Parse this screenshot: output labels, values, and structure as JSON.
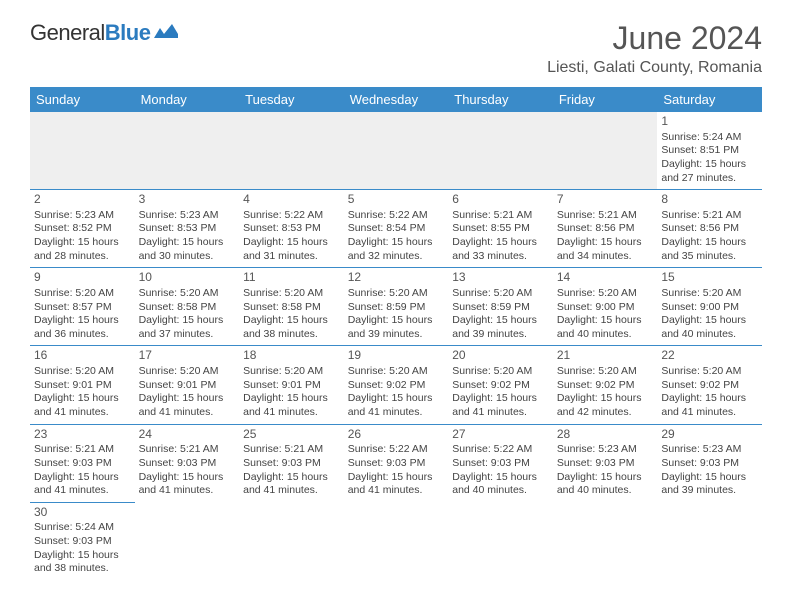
{
  "logo": {
    "text1": "General",
    "text2": "Blue"
  },
  "title": "June 2024",
  "location": "Liesti, Galati County, Romania",
  "colors": {
    "header_bg": "#3a8bc9",
    "header_text": "#ffffff",
    "border": "#3a8bc9",
    "logo_blue": "#2b7bbf",
    "text": "#444444",
    "empty_bg": "#efefef"
  },
  "weekdays": [
    "Sunday",
    "Monday",
    "Tuesday",
    "Wednesday",
    "Thursday",
    "Friday",
    "Saturday"
  ],
  "weeks": [
    [
      null,
      null,
      null,
      null,
      null,
      null,
      {
        "d": "1",
        "sr": "Sunrise: 5:24 AM",
        "ss": "Sunset: 8:51 PM",
        "dl1": "Daylight: 15 hours",
        "dl2": "and 27 minutes."
      }
    ],
    [
      {
        "d": "2",
        "sr": "Sunrise: 5:23 AM",
        "ss": "Sunset: 8:52 PM",
        "dl1": "Daylight: 15 hours",
        "dl2": "and 28 minutes."
      },
      {
        "d": "3",
        "sr": "Sunrise: 5:23 AM",
        "ss": "Sunset: 8:53 PM",
        "dl1": "Daylight: 15 hours",
        "dl2": "and 30 minutes."
      },
      {
        "d": "4",
        "sr": "Sunrise: 5:22 AM",
        "ss": "Sunset: 8:53 PM",
        "dl1": "Daylight: 15 hours",
        "dl2": "and 31 minutes."
      },
      {
        "d": "5",
        "sr": "Sunrise: 5:22 AM",
        "ss": "Sunset: 8:54 PM",
        "dl1": "Daylight: 15 hours",
        "dl2": "and 32 minutes."
      },
      {
        "d": "6",
        "sr": "Sunrise: 5:21 AM",
        "ss": "Sunset: 8:55 PM",
        "dl1": "Daylight: 15 hours",
        "dl2": "and 33 minutes."
      },
      {
        "d": "7",
        "sr": "Sunrise: 5:21 AM",
        "ss": "Sunset: 8:56 PM",
        "dl1": "Daylight: 15 hours",
        "dl2": "and 34 minutes."
      },
      {
        "d": "8",
        "sr": "Sunrise: 5:21 AM",
        "ss": "Sunset: 8:56 PM",
        "dl1": "Daylight: 15 hours",
        "dl2": "and 35 minutes."
      }
    ],
    [
      {
        "d": "9",
        "sr": "Sunrise: 5:20 AM",
        "ss": "Sunset: 8:57 PM",
        "dl1": "Daylight: 15 hours",
        "dl2": "and 36 minutes."
      },
      {
        "d": "10",
        "sr": "Sunrise: 5:20 AM",
        "ss": "Sunset: 8:58 PM",
        "dl1": "Daylight: 15 hours",
        "dl2": "and 37 minutes."
      },
      {
        "d": "11",
        "sr": "Sunrise: 5:20 AM",
        "ss": "Sunset: 8:58 PM",
        "dl1": "Daylight: 15 hours",
        "dl2": "and 38 minutes."
      },
      {
        "d": "12",
        "sr": "Sunrise: 5:20 AM",
        "ss": "Sunset: 8:59 PM",
        "dl1": "Daylight: 15 hours",
        "dl2": "and 39 minutes."
      },
      {
        "d": "13",
        "sr": "Sunrise: 5:20 AM",
        "ss": "Sunset: 8:59 PM",
        "dl1": "Daylight: 15 hours",
        "dl2": "and 39 minutes."
      },
      {
        "d": "14",
        "sr": "Sunrise: 5:20 AM",
        "ss": "Sunset: 9:00 PM",
        "dl1": "Daylight: 15 hours",
        "dl2": "and 40 minutes."
      },
      {
        "d": "15",
        "sr": "Sunrise: 5:20 AM",
        "ss": "Sunset: 9:00 PM",
        "dl1": "Daylight: 15 hours",
        "dl2": "and 40 minutes."
      }
    ],
    [
      {
        "d": "16",
        "sr": "Sunrise: 5:20 AM",
        "ss": "Sunset: 9:01 PM",
        "dl1": "Daylight: 15 hours",
        "dl2": "and 41 minutes."
      },
      {
        "d": "17",
        "sr": "Sunrise: 5:20 AM",
        "ss": "Sunset: 9:01 PM",
        "dl1": "Daylight: 15 hours",
        "dl2": "and 41 minutes."
      },
      {
        "d": "18",
        "sr": "Sunrise: 5:20 AM",
        "ss": "Sunset: 9:01 PM",
        "dl1": "Daylight: 15 hours",
        "dl2": "and 41 minutes."
      },
      {
        "d": "19",
        "sr": "Sunrise: 5:20 AM",
        "ss": "Sunset: 9:02 PM",
        "dl1": "Daylight: 15 hours",
        "dl2": "and 41 minutes."
      },
      {
        "d": "20",
        "sr": "Sunrise: 5:20 AM",
        "ss": "Sunset: 9:02 PM",
        "dl1": "Daylight: 15 hours",
        "dl2": "and 41 minutes."
      },
      {
        "d": "21",
        "sr": "Sunrise: 5:20 AM",
        "ss": "Sunset: 9:02 PM",
        "dl1": "Daylight: 15 hours",
        "dl2": "and 42 minutes."
      },
      {
        "d": "22",
        "sr": "Sunrise: 5:20 AM",
        "ss": "Sunset: 9:02 PM",
        "dl1": "Daylight: 15 hours",
        "dl2": "and 41 minutes."
      }
    ],
    [
      {
        "d": "23",
        "sr": "Sunrise: 5:21 AM",
        "ss": "Sunset: 9:03 PM",
        "dl1": "Daylight: 15 hours",
        "dl2": "and 41 minutes."
      },
      {
        "d": "24",
        "sr": "Sunrise: 5:21 AM",
        "ss": "Sunset: 9:03 PM",
        "dl1": "Daylight: 15 hours",
        "dl2": "and 41 minutes."
      },
      {
        "d": "25",
        "sr": "Sunrise: 5:21 AM",
        "ss": "Sunset: 9:03 PM",
        "dl1": "Daylight: 15 hours",
        "dl2": "and 41 minutes."
      },
      {
        "d": "26",
        "sr": "Sunrise: 5:22 AM",
        "ss": "Sunset: 9:03 PM",
        "dl1": "Daylight: 15 hours",
        "dl2": "and 41 minutes."
      },
      {
        "d": "27",
        "sr": "Sunrise: 5:22 AM",
        "ss": "Sunset: 9:03 PM",
        "dl1": "Daylight: 15 hours",
        "dl2": "and 40 minutes."
      },
      {
        "d": "28",
        "sr": "Sunrise: 5:23 AM",
        "ss": "Sunset: 9:03 PM",
        "dl1": "Daylight: 15 hours",
        "dl2": "and 40 minutes."
      },
      {
        "d": "29",
        "sr": "Sunrise: 5:23 AM",
        "ss": "Sunset: 9:03 PM",
        "dl1": "Daylight: 15 hours",
        "dl2": "and 39 minutes."
      }
    ],
    [
      {
        "d": "30",
        "sr": "Sunrise: 5:24 AM",
        "ss": "Sunset: 9:03 PM",
        "dl1": "Daylight: 15 hours",
        "dl2": "and 38 minutes."
      },
      null,
      null,
      null,
      null,
      null,
      null
    ]
  ]
}
